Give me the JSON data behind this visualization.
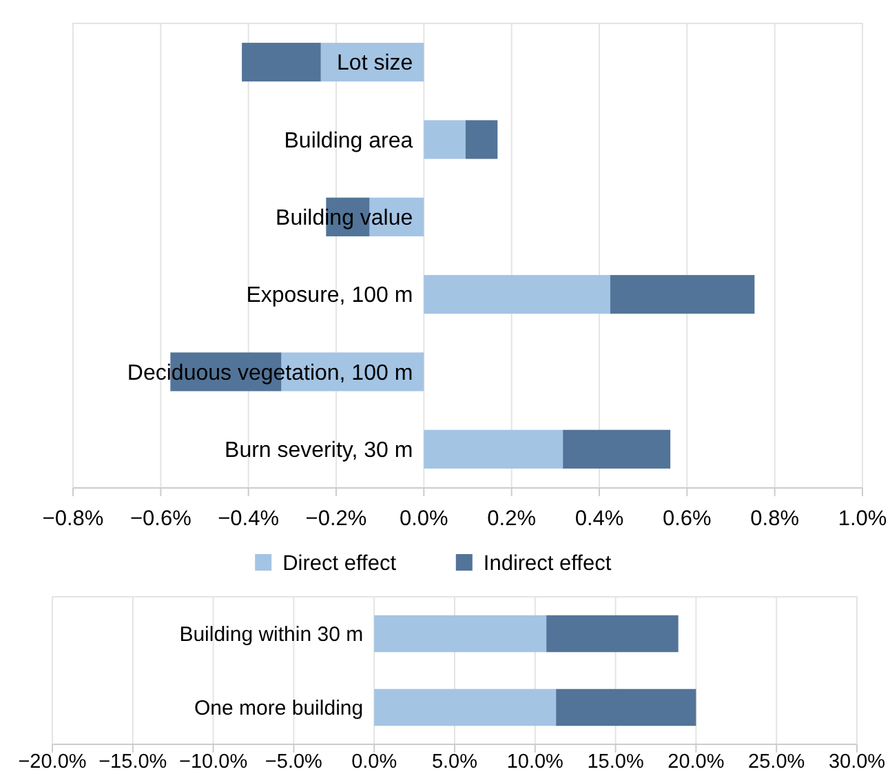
{
  "chart_data": [
    {
      "type": "bar",
      "orientation": "horizontal",
      "stacked": true,
      "categories": [
        "Lot size",
        "Building area",
        "Building value",
        "Exposure, 100 m",
        "Deciduous vegetation, 100 m",
        "Burn severity, 30 m"
      ],
      "series": [
        {
          "name": "Direct effect",
          "color": "#a4c4e4",
          "values": [
            -0.235,
            0.095,
            -0.124,
            0.425,
            -0.325,
            0.317
          ]
        },
        {
          "name": "Indirect effect",
          "color": "#527498",
          "values": [
            -0.18,
            0.073,
            -0.099,
            0.329,
            -0.253,
            0.245
          ]
        }
      ],
      "xlim": [
        -0.8,
        1.0
      ],
      "xticks": [
        {
          "value": -0.8,
          "label": "−0.8%"
        },
        {
          "value": -0.6,
          "label": "−0.6%"
        },
        {
          "value": -0.4,
          "label": "−0.4%"
        },
        {
          "value": -0.2,
          "label": "−0.2%"
        },
        {
          "value": 0,
          "label": "0.0%"
        },
        {
          "value": 0.2,
          "label": "0.2%"
        },
        {
          "value": 0.4,
          "label": "0.4%"
        },
        {
          "value": 0.6,
          "label": "0.6%"
        },
        {
          "value": 0.8,
          "label": "0.8%"
        },
        {
          "value": 1.0,
          "label": "1.0%"
        }
      ],
      "grid": "x",
      "legend": "bottom"
    },
    {
      "type": "bar",
      "orientation": "horizontal",
      "stacked": true,
      "categories": [
        "Building within 30 m",
        "One more building"
      ],
      "series": [
        {
          "color": "#a4c4e4",
          "values": [
            10.7,
            11.3
          ]
        },
        {
          "color": "#527498",
          "values": [
            8.2,
            8.7
          ]
        }
      ],
      "xlim": [
        -20,
        30
      ],
      "xticks": [
        {
          "value": -20,
          "label": "−20.0%"
        },
        {
          "value": -15,
          "label": "−15.0%"
        },
        {
          "value": -10,
          "label": "−10.0%"
        },
        {
          "value": -5,
          "label": "−5.0%"
        },
        {
          "value": 0,
          "label": "0.0%"
        },
        {
          "value": 5,
          "label": "5.0%"
        },
        {
          "value": 10,
          "label": "10.0%"
        },
        {
          "value": 15,
          "label": "15.0%"
        },
        {
          "value": 20,
          "label": "20.0%"
        },
        {
          "value": 25,
          "label": "25.0%"
        },
        {
          "value": 30,
          "label": "30.0%"
        }
      ],
      "grid": "x",
      "legend": false
    }
  ]
}
